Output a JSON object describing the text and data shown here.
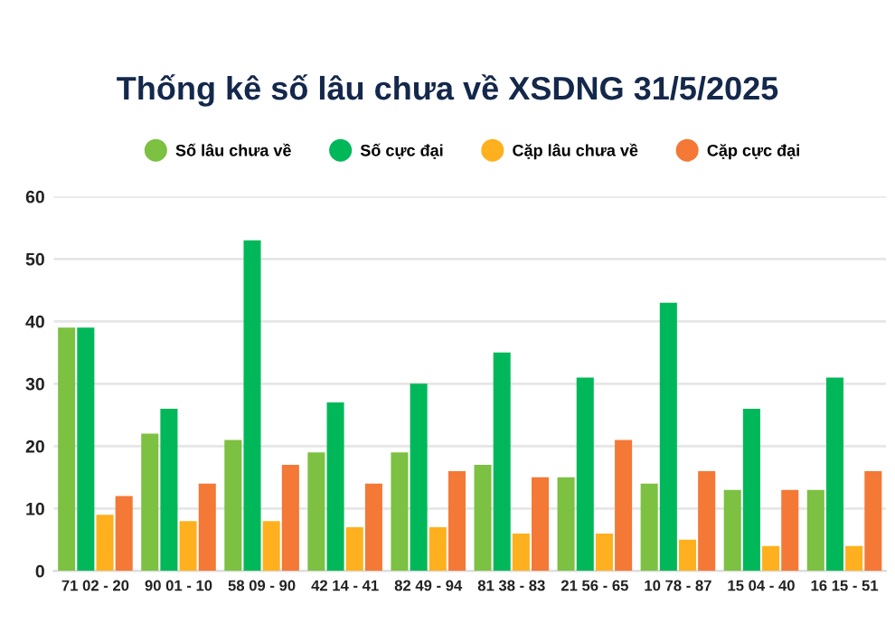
{
  "chart_data": {
    "type": "bar",
    "title": "Thống kê số lâu chưa về XSDNG 31/5/2025",
    "categories": [
      "71 02 - 20",
      "90 01 - 10",
      "58 09 - 90",
      "42 14 - 41",
      "82 49 - 94",
      "81 38 - 83",
      "21 56 - 65",
      "10 78 - 87",
      "15 04 - 40",
      "16 15 - 51"
    ],
    "series": [
      {
        "name": "Số lâu chưa về",
        "color": "#7cc142",
        "values": [
          39,
          22,
          21,
          19,
          19,
          17,
          15,
          14,
          13,
          13
        ]
      },
      {
        "name": "Số cực đại",
        "color": "#00b85a",
        "values": [
          39,
          26,
          53,
          27,
          30,
          35,
          31,
          43,
          26,
          31
        ]
      },
      {
        "name": "Cặp lâu chưa về",
        "color": "#ffb01e",
        "values": [
          9,
          8,
          8,
          7,
          7,
          6,
          6,
          5,
          4,
          4
        ]
      },
      {
        "name": "Cặp cực đại",
        "color": "#f47836",
        "values": [
          12,
          14,
          17,
          14,
          16,
          15,
          21,
          16,
          13,
          16
        ]
      }
    ],
    "ylim": [
      0,
      60
    ],
    "yticks": [
      0,
      10,
      20,
      30,
      40,
      50,
      60
    ],
    "grid": "y",
    "legend": "top"
  }
}
